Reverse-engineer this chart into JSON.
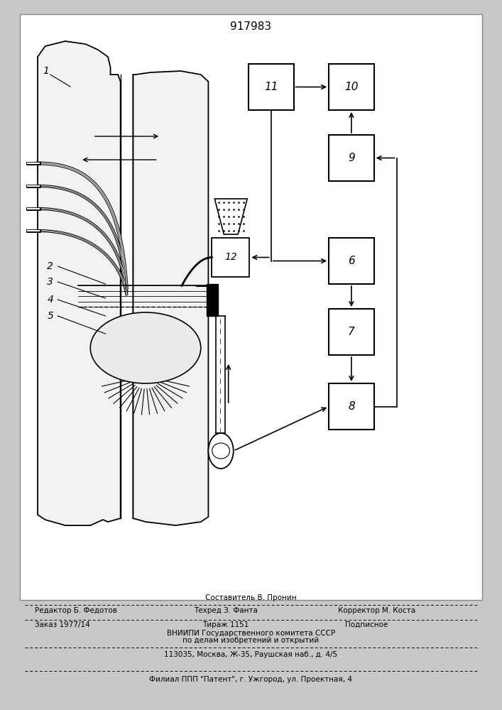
{
  "title": "917983",
  "bg_color": "#f0f0f0",
  "drawing_bg": "#f5f5f5",
  "block_11": [
    0.495,
    0.845,
    0.09,
    0.065
  ],
  "block_10": [
    0.655,
    0.845,
    0.09,
    0.065
  ],
  "block_9": [
    0.655,
    0.745,
    0.09,
    0.065
  ],
  "block_6": [
    0.655,
    0.6,
    0.09,
    0.065
  ],
  "block_7": [
    0.655,
    0.5,
    0.09,
    0.065
  ],
  "block_8": [
    0.655,
    0.395,
    0.09,
    0.065
  ],
  "footer": {
    "line1_center": "Составитель В. Пронин",
    "line2_left": "Редактор Б. Федотов",
    "line2_center": "Техред З. Фанта",
    "line2_right": "Корректор М. Коста",
    "line3_left": "Заказ 1977/14",
    "line3_center": "Тираж 1151",
    "line3_right": "Подписное",
    "line4": "ВНИИПИ Государственного комитета СССР",
    "line5": "по делам изобретений и открытий",
    "line6": "113035, Москва, Ж-35, Раушская наб., д. 4/5",
    "line7": "Филиал ППП \"Патент\", г. Ужгород, ул. Проектная, 4"
  }
}
